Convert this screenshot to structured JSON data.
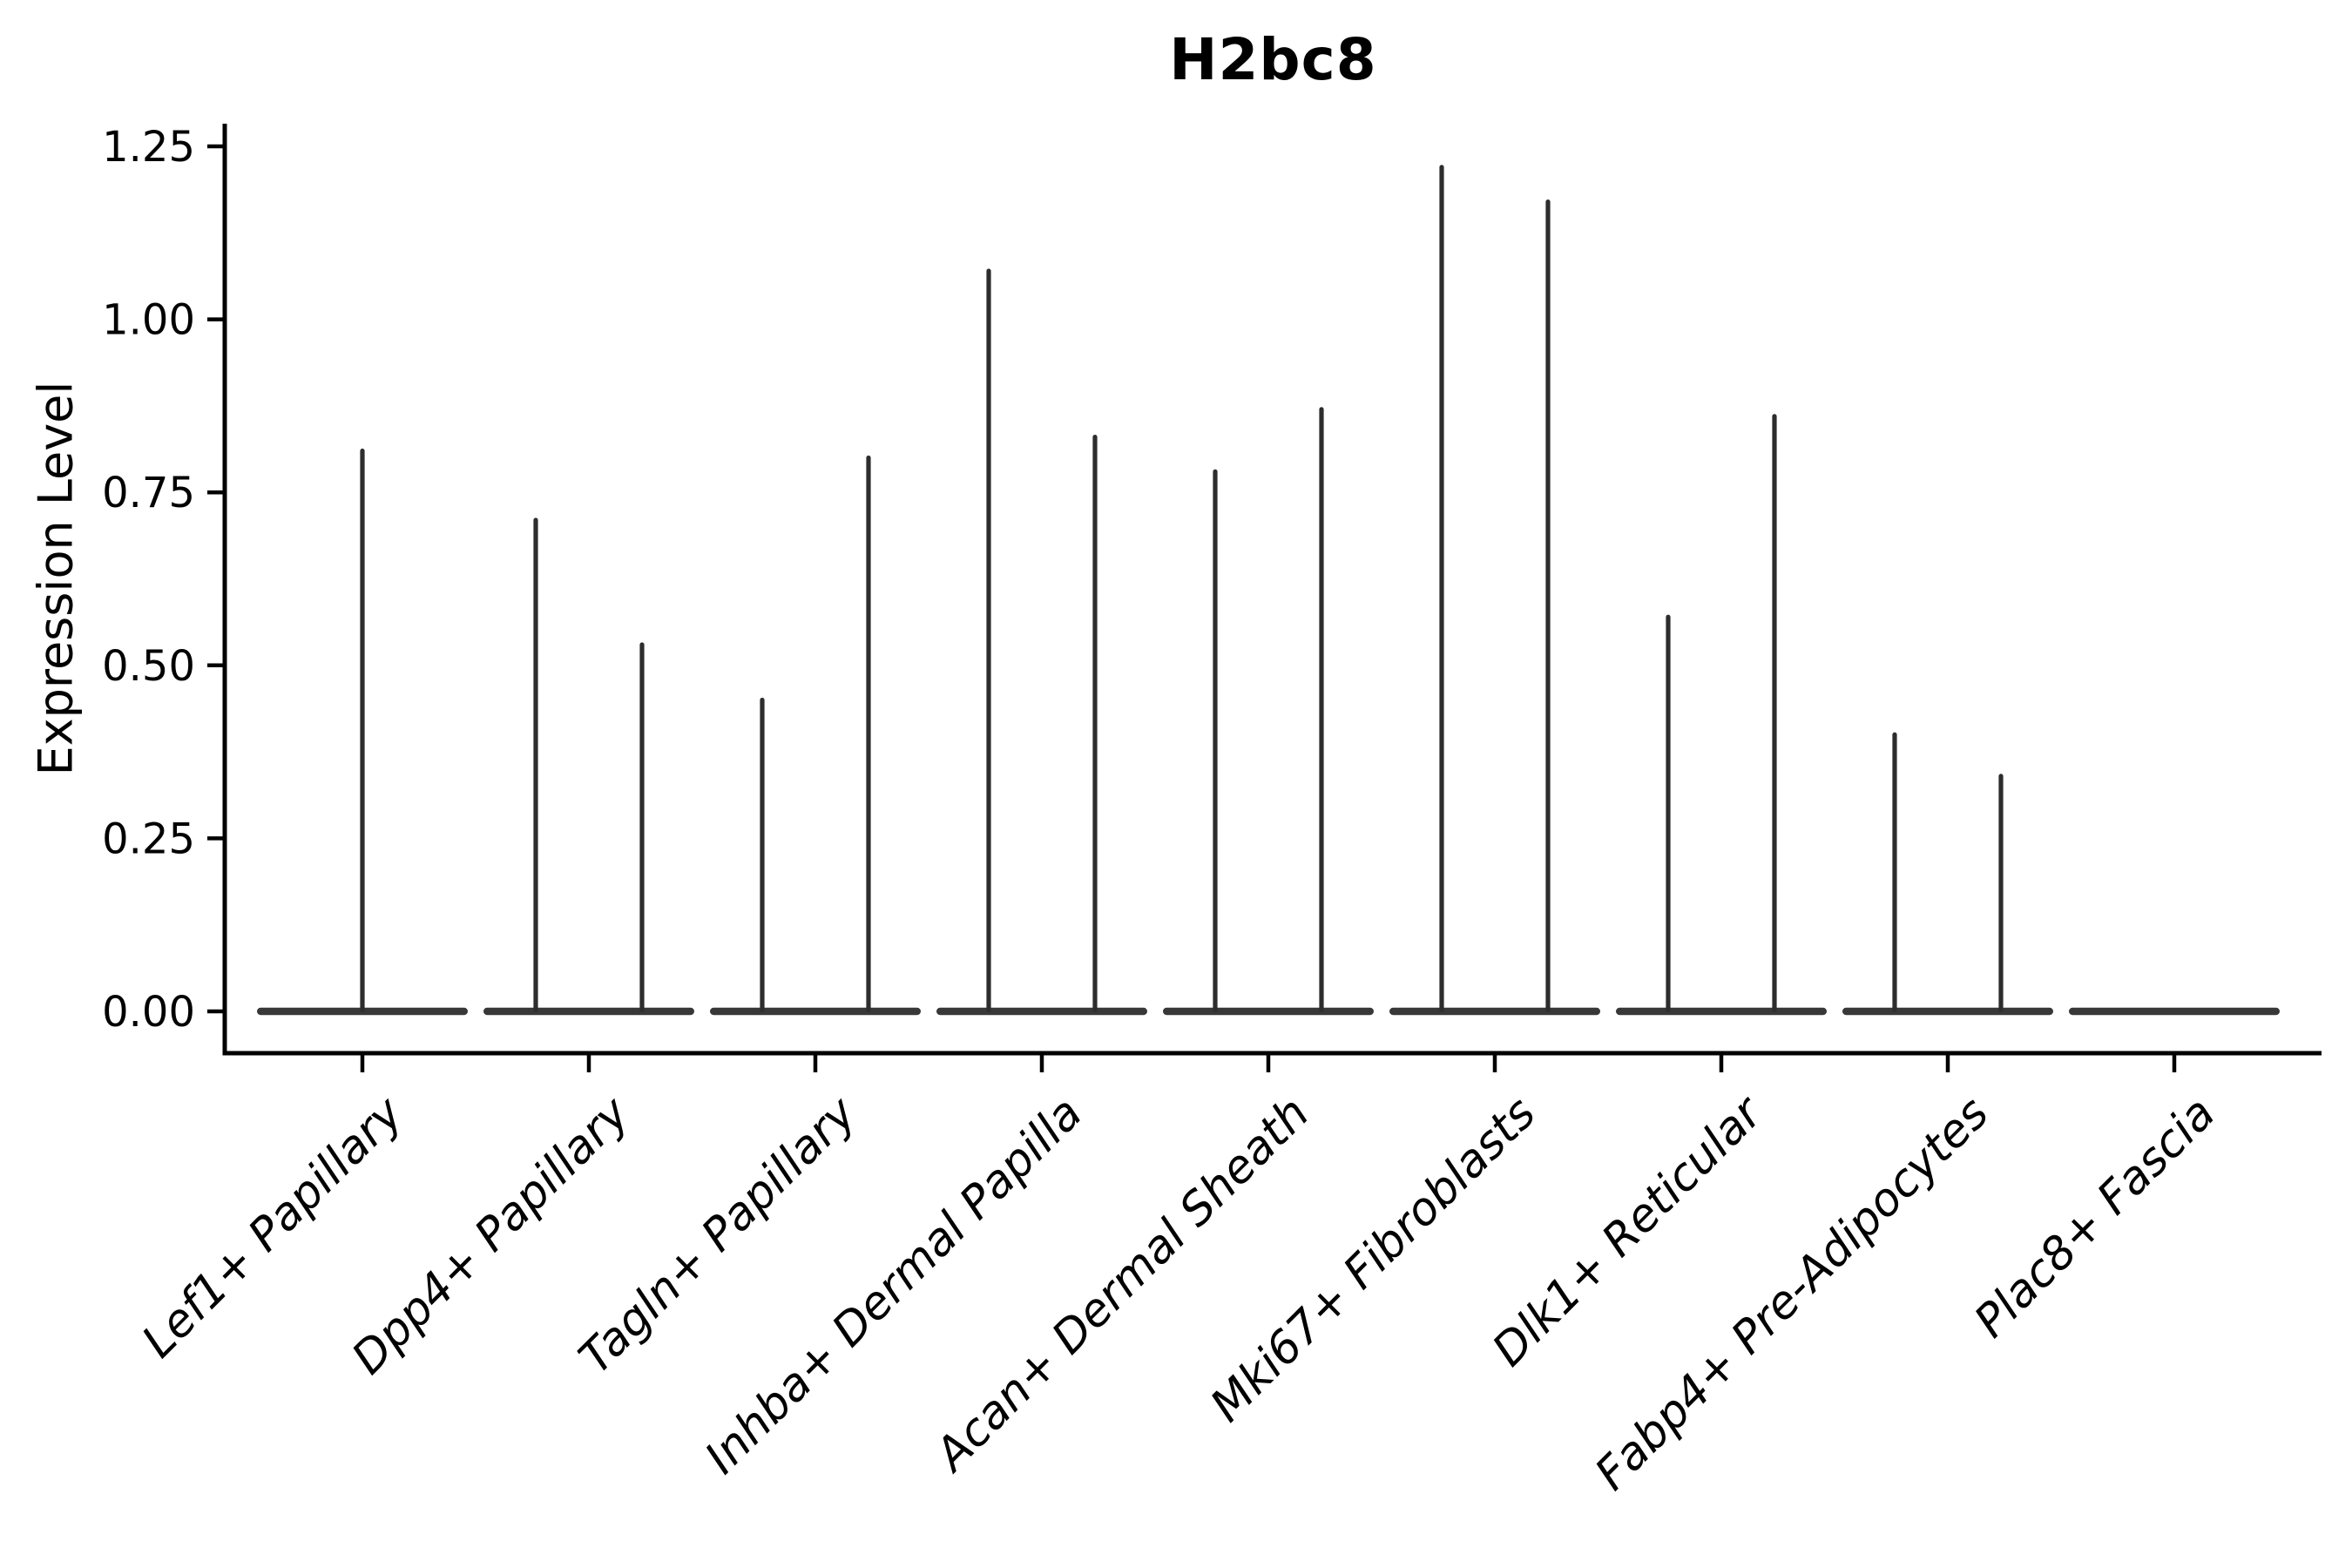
{
  "chart_data": {
    "type": "violin",
    "title": "H2bc8",
    "ylabel": "Expression Level",
    "xlabel": "",
    "ylim": [
      -0.06,
      1.28
    ],
    "grid": false,
    "legend": null,
    "yticks": [
      {
        "value": 0.0,
        "label": "0.00"
      },
      {
        "value": 0.25,
        "label": "0.25"
      },
      {
        "value": 0.5,
        "label": "0.50"
      },
      {
        "value": 0.75,
        "label": "0.75"
      },
      {
        "value": 1.0,
        "label": "1.00"
      },
      {
        "value": 1.25,
        "label": "1.25"
      }
    ],
    "categories": [
      "Lef1+ Papillary",
      "Dpp4+ Papillary",
      "Tagln+ Papillary",
      "Inhba+ Dermal Papilla",
      "Acan+ Dermal Sheath",
      "Mki67+ Fibroblasts",
      "Dlk1+ Reticular",
      "Fabp4+ Pre-Adipocytes",
      "Plac8+ Fascia"
    ],
    "violins": [
      {
        "category": "Lef1+ Papillary",
        "spikes": [
          {
            "pos": "center",
            "max": 0.81
          }
        ]
      },
      {
        "category": "Dpp4+ Papillary",
        "spikes": [
          {
            "pos": "left",
            "max": 0.71
          },
          {
            "pos": "right",
            "max": 0.53
          }
        ]
      },
      {
        "category": "Tagln+ Papillary",
        "spikes": [
          {
            "pos": "left",
            "max": 0.45
          },
          {
            "pos": "right",
            "max": 0.8
          }
        ]
      },
      {
        "category": "Inhba+ Dermal Papilla",
        "spikes": [
          {
            "pos": "left",
            "max": 1.07
          },
          {
            "pos": "right",
            "max": 0.83
          }
        ]
      },
      {
        "category": "Acan+ Dermal Sheath",
        "spikes": [
          {
            "pos": "left",
            "max": 0.78
          },
          {
            "pos": "right",
            "max": 0.87
          }
        ]
      },
      {
        "category": "Mki67+ Fibroblasts",
        "spikes": [
          {
            "pos": "left",
            "max": 1.22
          },
          {
            "pos": "right",
            "max": 1.17
          }
        ]
      },
      {
        "category": "Dlk1+ Reticular",
        "spikes": [
          {
            "pos": "left",
            "max": 0.57
          },
          {
            "pos": "right",
            "max": 0.86
          }
        ]
      },
      {
        "category": "Fabp4+ Pre-Adipocytes",
        "spikes": [
          {
            "pos": "left",
            "max": 0.4
          },
          {
            "pos": "right",
            "max": 0.34
          }
        ]
      },
      {
        "category": "Plac8+ Fascia",
        "spikes": []
      }
    ],
    "colors": {
      "violin_base": "#383838",
      "spike": "#2d2d2d",
      "axis": "#000000",
      "text": "#000000",
      "background": "#ffffff"
    }
  }
}
